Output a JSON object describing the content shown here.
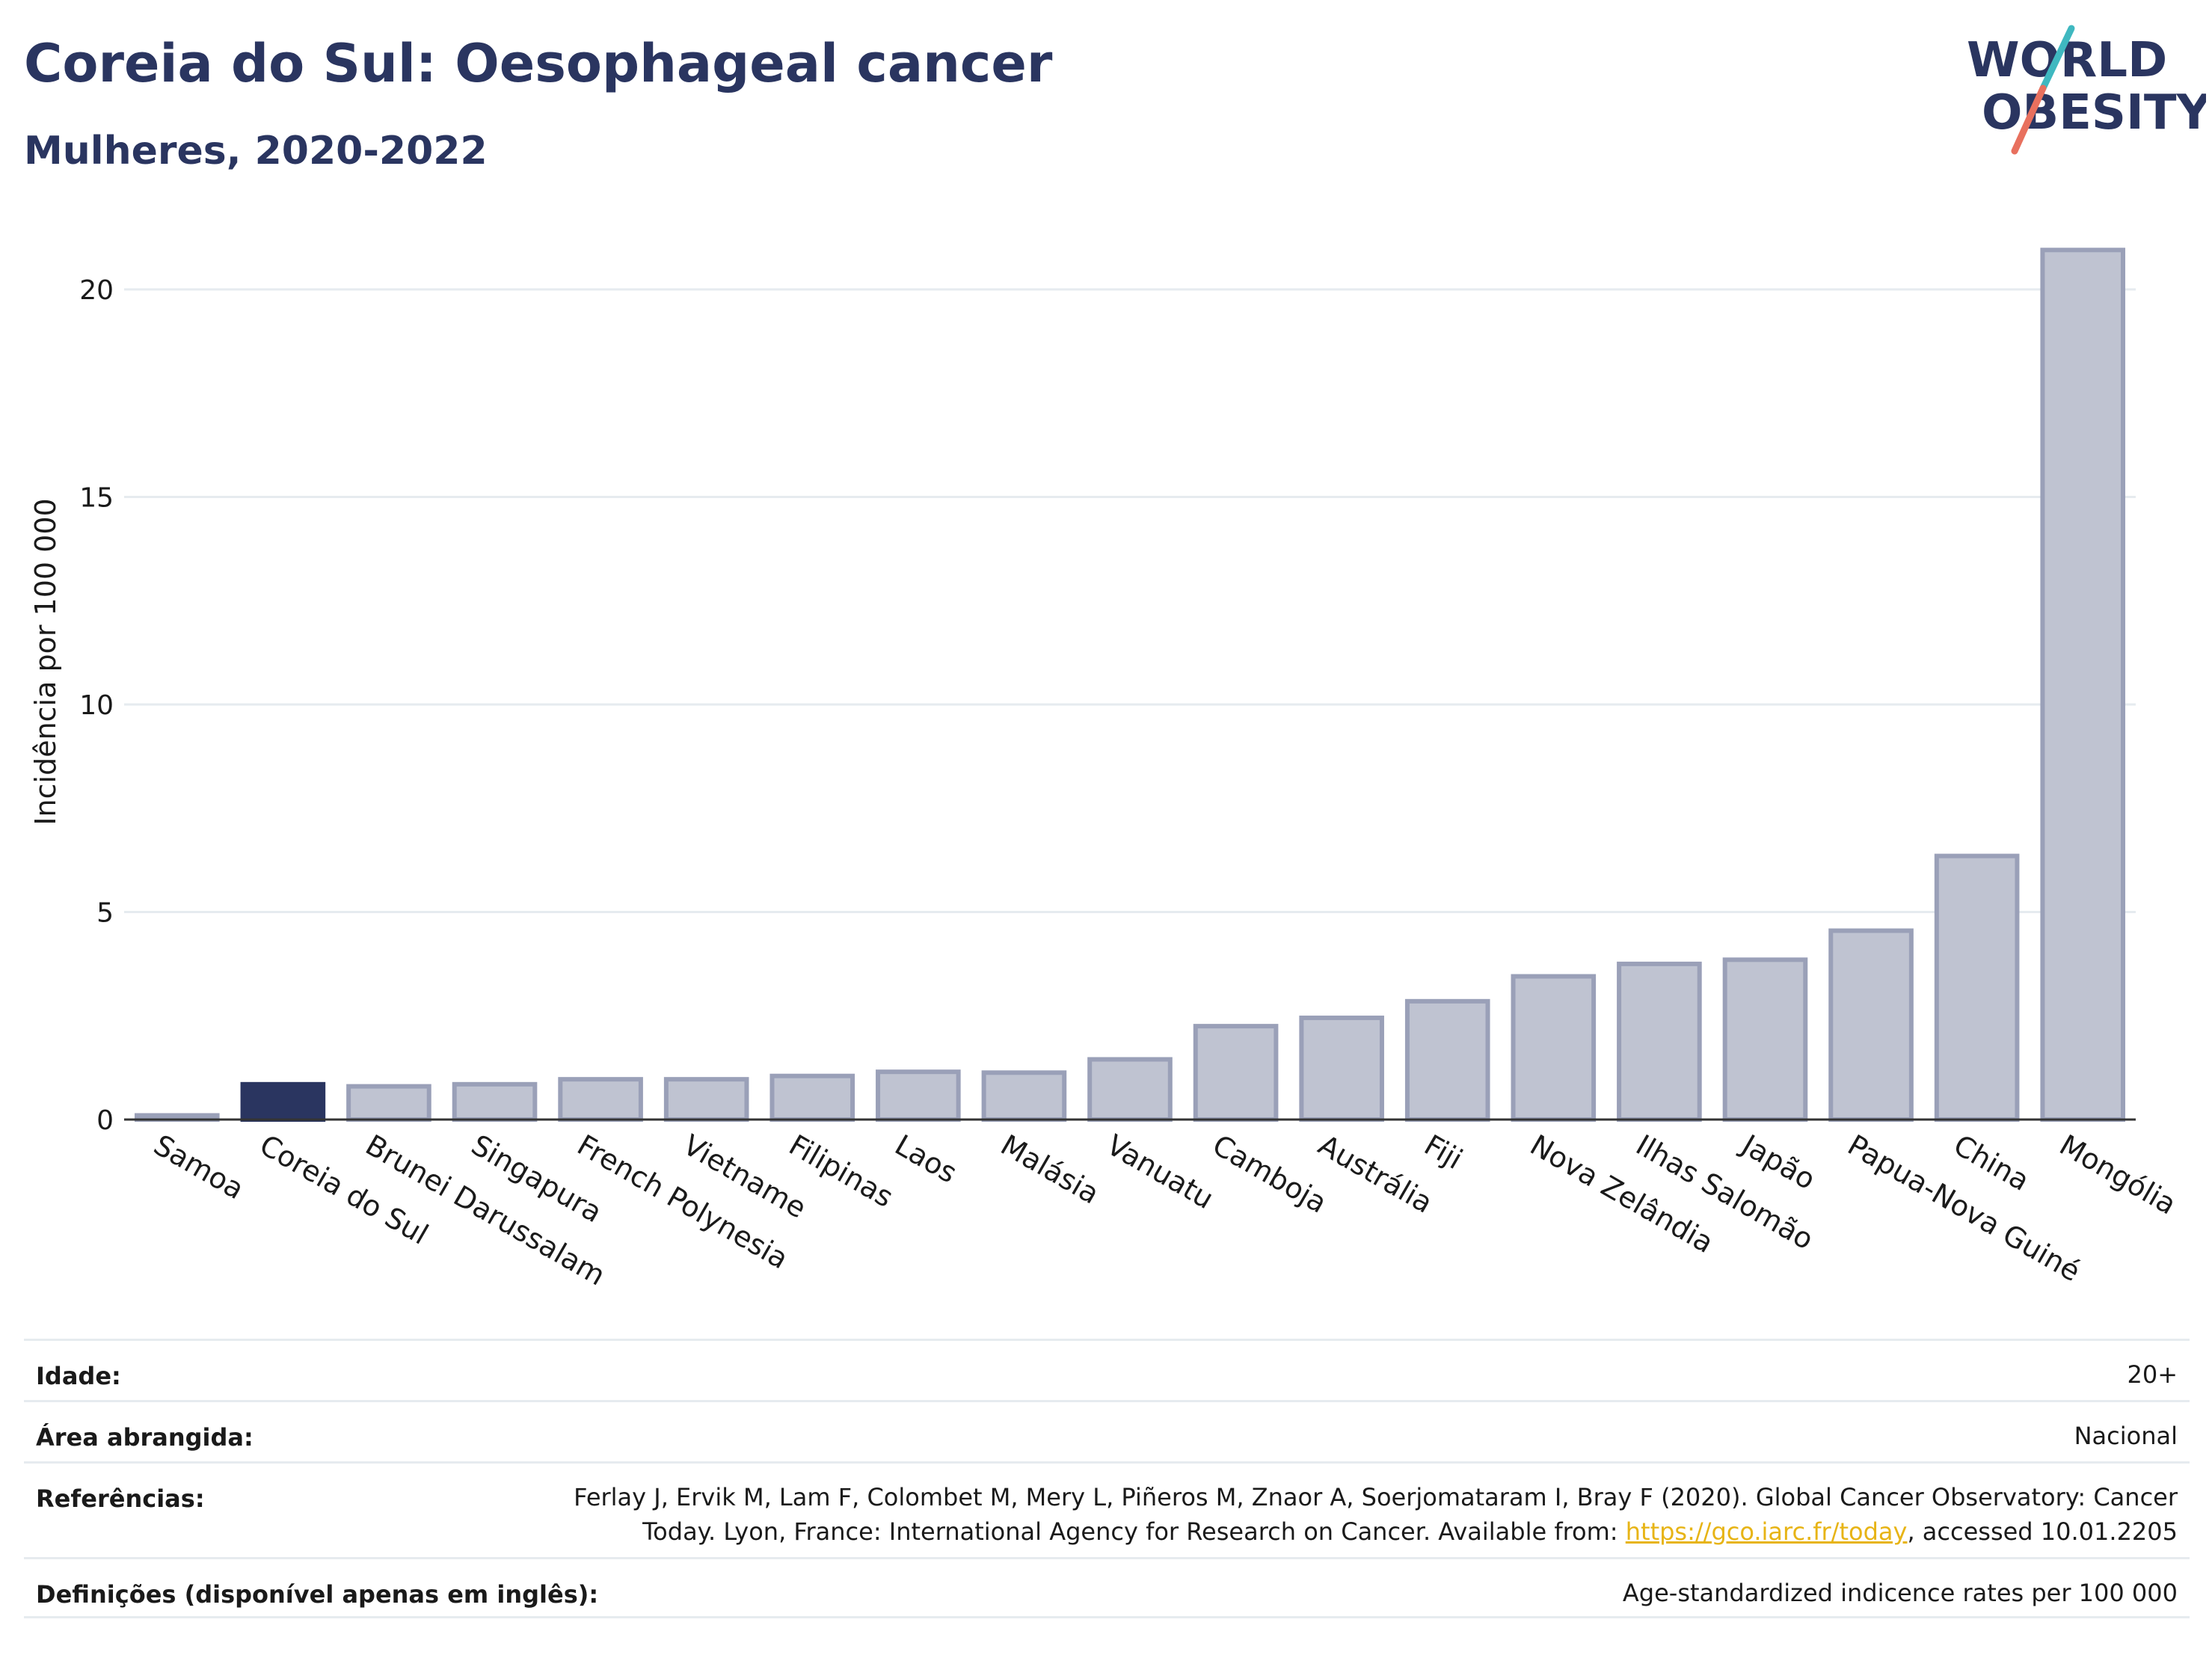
{
  "header": {
    "title": "Coreia do Sul: Oesophageal cancer",
    "subtitle": "Mulheres, 2020-2022",
    "logo_line1": "WORLD",
    "logo_line2": "OBESITY"
  },
  "colors": {
    "highlight": "#2a3560",
    "bar": "#bfc3d1",
    "bar_border": "#9aa0b8",
    "title": "#2a3560",
    "grid": "#e6ebef",
    "link": "#e7b416",
    "logo_slash_top": "#3fb8c0",
    "logo_slash_bottom": "#e8705e"
  },
  "chart_data": {
    "type": "bar",
    "ylabel": "Incidência por 100 000",
    "xlabel": "",
    "ylim": [
      0,
      21.6
    ],
    "yticks": [
      0,
      5,
      10,
      15,
      20
    ],
    "grid": true,
    "highlight": "Coreia do Sul",
    "categories": [
      "Samoa",
      "Coreia do Sul",
      "Brunei Darussalam",
      "Singapura",
      "French Polynesia",
      "Vietname",
      "Filipinas",
      "Laos",
      "Malásia",
      "Vanuatu",
      "Camboja",
      "Austrália",
      "Fiji",
      "Nova Zelândia",
      "Ilhas Salomão",
      "Japão",
      "Papua-Nova Guiné",
      "China",
      "Mongólia"
    ],
    "values": [
      0.1,
      0.85,
      0.8,
      0.85,
      0.97,
      0.97,
      1.05,
      1.15,
      1.13,
      1.45,
      2.25,
      2.45,
      2.85,
      3.45,
      3.75,
      3.85,
      4.55,
      6.35,
      20.95
    ]
  },
  "info": {
    "age_label": "Idade:",
    "age_value": "20+",
    "area_label": "Área abrangida:",
    "area_value": "Nacional",
    "refs_label": "Referências:",
    "refs_line1": "Ferlay J, Ervik M, Lam F, Colombet M, Mery L, Piñeros M, Znaor A, Soerjomataram I, Bray F (2020). Global Cancer Observatory: Cancer",
    "refs_line2_pre": "Today. Lyon, France: International Agency for Research on Cancer. Available from: ",
    "refs_link": "https://gco.iarc.fr/today",
    "refs_line2_post": ", accessed 10.01.2205",
    "def_label": "Definições (disponível apenas em inglês):",
    "def_value": "Age-standardized indicence rates per 100 000"
  }
}
